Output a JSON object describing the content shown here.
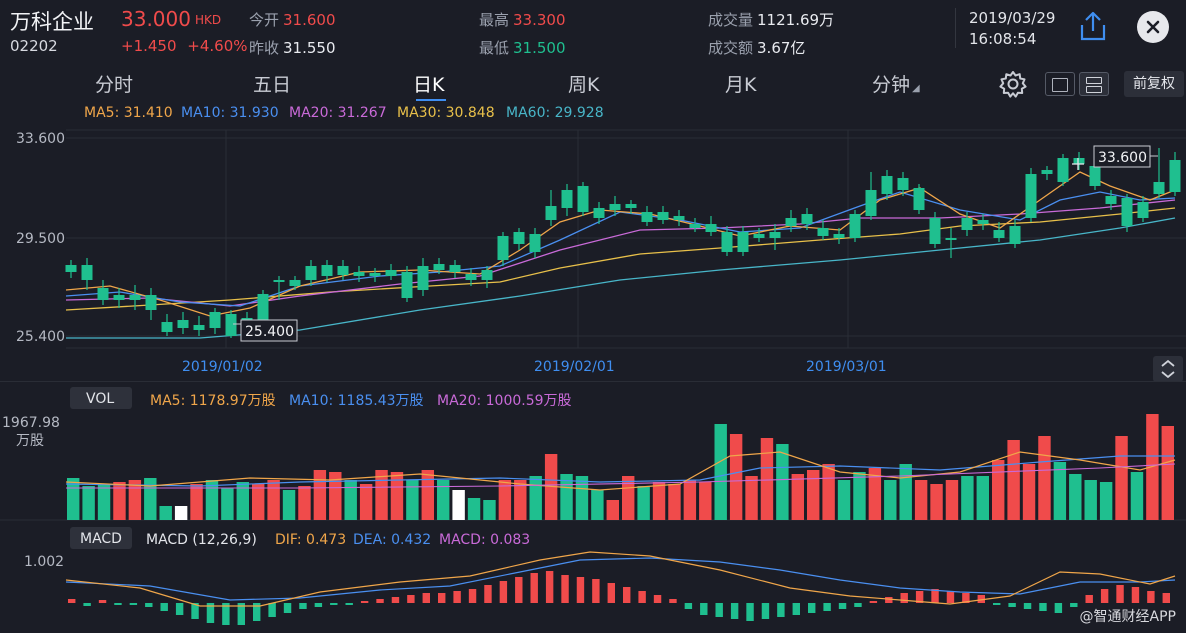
{
  "header": {
    "name": "万科企业",
    "code": "02202",
    "price": "33.000",
    "currency": "HKD",
    "change": "+1.450",
    "change_pct": "+4.60%",
    "open_label": "今开",
    "open": "31.600",
    "prev_close_label": "昨收",
    "prev_close": "31.550",
    "high_label": "最高",
    "high": "33.300",
    "low_label": "最低",
    "low": "31.500",
    "volume_label": "成交量",
    "volume": "1121.69万",
    "turnover_label": "成交额",
    "turnover": "3.67亿",
    "date": "2019/03/29",
    "time": "16:08:54",
    "share_icon": "share-icon",
    "close_icon": "close-icon"
  },
  "tabs": [
    {
      "label": "分时",
      "active": false
    },
    {
      "label": "五日",
      "active": false
    },
    {
      "label": "日K",
      "active": true
    },
    {
      "label": "周K",
      "active": false
    },
    {
      "label": "月K",
      "active": false
    },
    {
      "label": "分钟",
      "active": false
    }
  ],
  "toolbar": {
    "settings_icon": "gear-icon",
    "layout_icons": [
      "single-pane-icon",
      "dual-pane-icon"
    ],
    "adjust_label": "前复权"
  },
  "main_chart": {
    "ma_legend": [
      {
        "label": "MA5: 31.410",
        "color": "#f0a64a"
      },
      {
        "label": "MA10: 31.930",
        "color": "#4a8ff0"
      },
      {
        "label": "MA20: 31.267",
        "color": "#c96ad8"
      },
      {
        "label": "MA30: 30.848",
        "color": "#e8c04a"
      },
      {
        "label": "MA60: 29.928",
        "color": "#48b6c9"
      }
    ],
    "y_ticks": [
      "33.600",
      "29.500",
      "25.400"
    ],
    "x_ticks": [
      "2019/01/02",
      "2019/02/01",
      "2019/03/01"
    ],
    "low_marker": "25.400",
    "high_marker": "33.600",
    "collapse_icon": "collapse-icon"
  },
  "vol_chart": {
    "tag": "VOL",
    "legend": [
      {
        "label": "MA5: 1178.97万股",
        "color": "#f0a64a"
      },
      {
        "label": "MA10: 1185.43万股",
        "color": "#4a8ff0"
      },
      {
        "label": "MA20: 1000.59万股",
        "color": "#c96ad8"
      }
    ],
    "y_max": "1967.98",
    "y_unit": "万股"
  },
  "macd_chart": {
    "tag": "MACD",
    "params": "MACD (12,26,9)",
    "legend": [
      {
        "label": "DIF: 0.473",
        "color": "#f0a64a"
      },
      {
        "label": "DEA: 0.432",
        "color": "#4a8ff0"
      },
      {
        "label": "MACD: 0.083",
        "color": "#c96ad8"
      }
    ],
    "y_max": "1.002"
  },
  "watermark": "@智通财经APP",
  "colors": {
    "up": "#f04b4b",
    "down": "#1fbf8f",
    "flat": "#ffffff",
    "bg": "#1b1d26"
  }
}
